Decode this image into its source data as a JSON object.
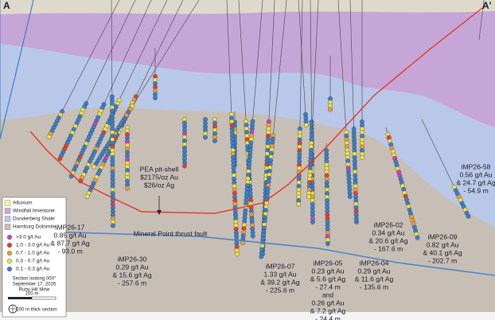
{
  "section": {
    "corner_left": "A",
    "corner_right": "A'",
    "pit_shell": [
      "PEA pit-shell",
      "$2175/oz Au",
      "$26/oz Ag"
    ],
    "fault": "Mineral Point thrust fault",
    "holes": [
      {
        "name": "iMP26-17",
        "lines": [
          "0.85 g/t Au",
          "& 87.7 g/t Ag",
          "- 93.0 m"
        ]
      },
      {
        "name": "iMP26-30",
        "lines": [
          "0.29 g/t Au",
          "& 15.6 g/t Ag",
          "- 257.6 m"
        ]
      },
      {
        "name": "iMP26-07",
        "lines": [
          "1.33 g/t Au",
          "& 39.2 g/t Ag",
          "- 225.6 m"
        ]
      },
      {
        "name": "iMP26-05",
        "lines": [
          "0.23 g/t Au",
          "& 5.6 g/t Ag",
          "- 27.4 m",
          "and",
          "0.26 g/t Au",
          "& 7.2 g/t Ag",
          "- 24.4 m"
        ]
      },
      {
        "name": "iMP26-02",
        "lines": [
          "0.34 g/t Au",
          "& 20.6 g/t Ag",
          "- 167.6 m"
        ]
      },
      {
        "name": "iMP26-04",
        "lines": [
          "0.29 g/t Au",
          "& 11.6 g/t Ag",
          "- 135.6 m"
        ]
      },
      {
        "name": "iMP26-09",
        "lines": [
          "0.82 g/t Au",
          "& 40.1 g/t Ag",
          "- 202.7 m"
        ]
      },
      {
        "name": "iMP26-58",
        "lines": [
          "0.56 g/t Au",
          "& 24.7 g/t Ag",
          "- 54.9 m"
        ]
      }
    ]
  },
  "legend": {
    "units": [
      {
        "label": "Alluvium",
        "color": "#f4f1a6"
      },
      {
        "label": "Windfall limestone",
        "color": "#c9a9d9"
      },
      {
        "label": "Dunderberg Shale",
        "color": "#b9c8e8"
      },
      {
        "label": "Hamburg Dolomite",
        "color": "#c7bfb6"
      }
    ],
    "grades": [
      {
        "label": ">3.0 g/t Au",
        "color": "#d43fc0"
      },
      {
        "label": "1.0 - 3.0 g/t Au",
        "color": "#e4402c"
      },
      {
        "label": "0.7 - 1.0 g/t Au",
        "color": "#f0a030"
      },
      {
        "label": "0.3 - 0.7 g/t Au",
        "color": "#f2e43c"
      },
      {
        "label": "0.1 - 0.3 g/t Au",
        "color": "#3b80c9"
      }
    ],
    "notes": [
      "Section looking 000°",
      "September 17, 2026",
      "Ruby Hill Mine"
    ],
    "scale": "100 m",
    "thickness": "200 m thick section"
  }
}
